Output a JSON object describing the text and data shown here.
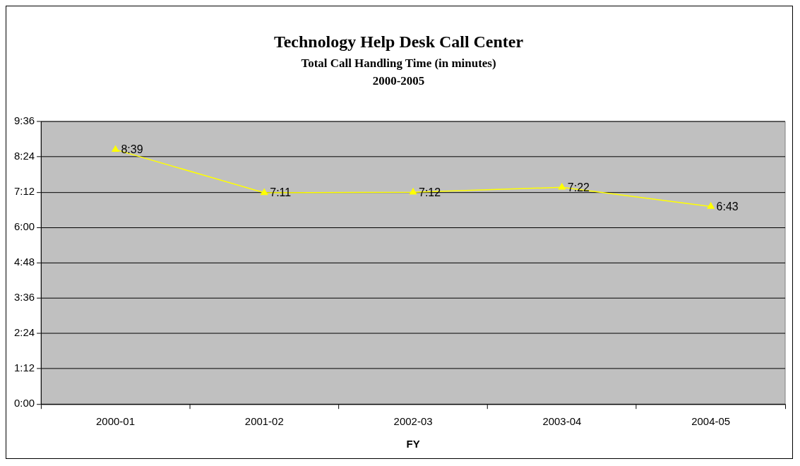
{
  "chart_data": {
    "type": "line",
    "title": "Technology Help Desk Call Center",
    "subtitle": "Total Call Handling Time (in minutes)\n2000-2005",
    "xlabel": "FY",
    "categories": [
      "2000-01",
      "2001-02",
      "2002-03",
      "2003-04",
      "2004-05"
    ],
    "series": [
      {
        "color": "#ffff00",
        "values": [
          8.65,
          7.183,
          7.2,
          7.367,
          6.717
        ],
        "value_labels": [
          "8:39",
          "7:11",
          "7:12",
          "7:22",
          "6:43"
        ]
      }
    ],
    "ylim": [
      0,
      9.6
    ],
    "yticks": [
      {
        "value": 0,
        "label": "0:00"
      },
      {
        "value": 1.2,
        "label": "1:12"
      },
      {
        "value": 2.4,
        "label": "2:24"
      },
      {
        "value": 3.6,
        "label": "3:36"
      },
      {
        "value": 4.8,
        "label": "4:48"
      },
      {
        "value": 6,
        "label": "6:00"
      },
      {
        "value": 7.2,
        "label": "7:12"
      },
      {
        "value": 8.4,
        "label": "8:24"
      },
      {
        "value": 9.6,
        "label": "9:36"
      }
    ],
    "grid": "y",
    "legend": false,
    "marker": "triangle",
    "line_style": "solid"
  }
}
